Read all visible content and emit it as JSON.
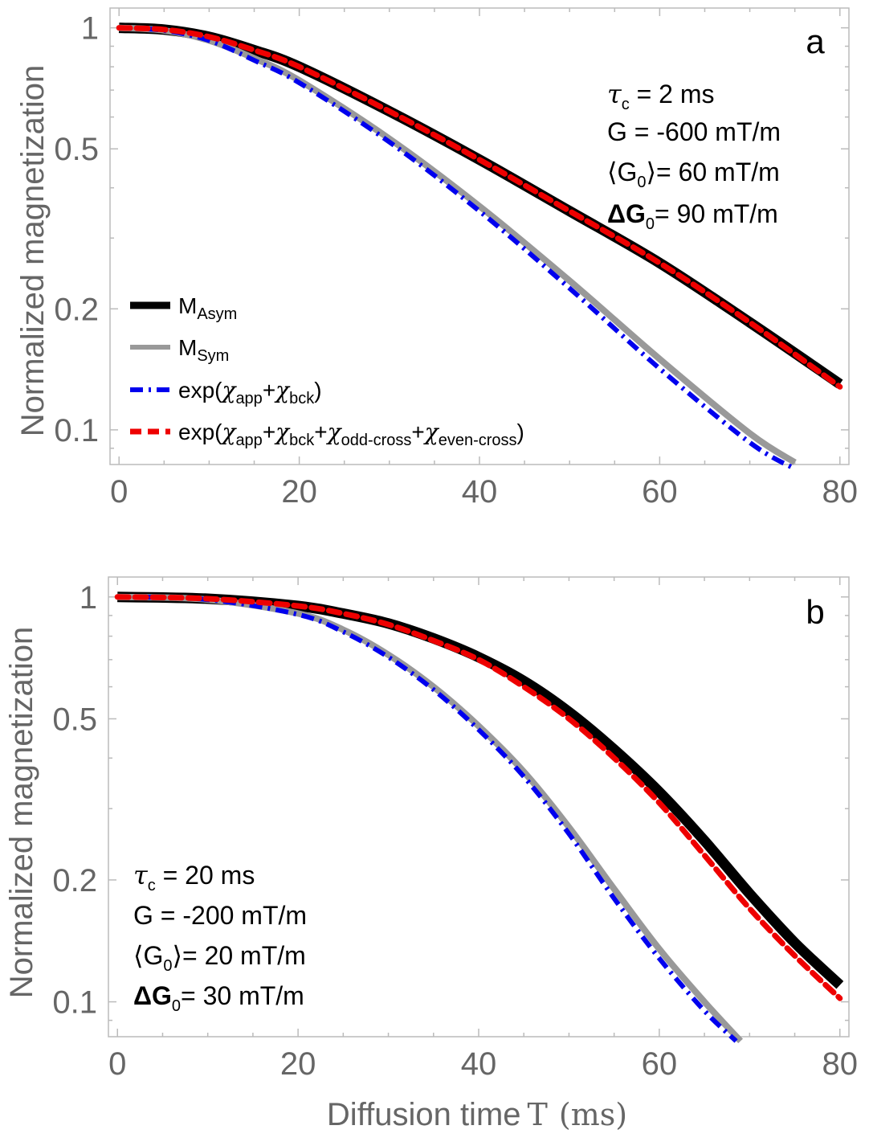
{
  "figure": {
    "xlabel_main": "Diffusion time",
    "xlabel_symbol": "T",
    "xlabel_unit": "(ms)",
    "ylabel": "Normalized magnetization"
  },
  "legend": {
    "items": [
      {
        "base": "M",
        "sub": "Asym",
        "color": "#000000",
        "style": "solid-thick"
      },
      {
        "base": "M",
        "sub": "Sym",
        "color": "#999999",
        "style": "solid"
      },
      {
        "base": "exp(",
        "parts": [
          [
            "χ",
            "app"
          ],
          [
            "χ",
            "bck"
          ]
        ],
        "color": "#0000ee",
        "style": "dashdot"
      },
      {
        "base": "exp(",
        "parts": [
          [
            "χ",
            "app"
          ],
          [
            "χ",
            "bck"
          ],
          [
            "χ",
            "odd-cross"
          ],
          [
            "χ",
            "even-cross"
          ]
        ],
        "color": "#ee0000",
        "style": "dashed"
      }
    ]
  },
  "colors": {
    "asym": "#000000",
    "sym": "#999999",
    "exp2": "#0000ee",
    "exp4": "#ee0000",
    "frame": "#bbbbbb",
    "ticklabel": "#666666"
  },
  "chart_data": [
    {
      "type": "line",
      "panel": "a",
      "yscale": "log",
      "xlim": [
        -1,
        81
      ],
      "ylim": [
        0.082,
        1.12
      ],
      "xticks": [
        0,
        20,
        40,
        60,
        80
      ],
      "yticks": [
        0.1,
        0.2,
        0.5,
        1
      ],
      "ytick_labels": [
        "0.1",
        "0.2",
        "0.5",
        "1"
      ],
      "annotation": {
        "tau": {
          "sym": "τ",
          "sub": "c",
          "rest": " = 2 ms"
        },
        "G": "G = -600 mT/m",
        "G0": {
          "pre": "⟨G",
          "sub": "0",
          "rest": "⟩= 60 mT/m"
        },
        "dG0": {
          "pre": "ΔG",
          "sub": "0",
          "rest": "= 90 mT/m"
        }
      },
      "series": [
        {
          "name": "M_Asym",
          "x": [
            0,
            5,
            10,
            15,
            20,
            30,
            40,
            50,
            60,
            70,
            80
          ],
          "y": [
            1.0,
            0.99,
            0.95,
            0.88,
            0.8,
            0.62,
            0.47,
            0.35,
            0.26,
            0.185,
            0.13
          ]
        },
        {
          "name": "M_Sym",
          "x": [
            0,
            5,
            10,
            15,
            20,
            30,
            40,
            50,
            60,
            70,
            75
          ],
          "y": [
            1.0,
            0.985,
            0.93,
            0.84,
            0.74,
            0.53,
            0.36,
            0.235,
            0.15,
            0.098,
            0.083
          ]
        },
        {
          "name": "exp(χapp+χbck)",
          "x": [
            0,
            5,
            10,
            15,
            20,
            30,
            40,
            50,
            60,
            70,
            75
          ],
          "y": [
            1.0,
            0.985,
            0.93,
            0.83,
            0.73,
            0.52,
            0.35,
            0.225,
            0.142,
            0.093,
            0.08
          ]
        },
        {
          "name": "exp(χapp+χbck+χodd-cross+χeven-cross)",
          "x": [
            0,
            5,
            10,
            15,
            20,
            30,
            40,
            50,
            60,
            70,
            80
          ],
          "y": [
            1.0,
            0.99,
            0.95,
            0.88,
            0.8,
            0.62,
            0.47,
            0.35,
            0.26,
            0.185,
            0.128
          ]
        }
      ]
    },
    {
      "type": "line",
      "panel": "b",
      "yscale": "log",
      "xlim": [
        -1,
        81
      ],
      "ylim": [
        0.082,
        1.12
      ],
      "xticks": [
        0,
        20,
        40,
        60,
        80
      ],
      "yticks": [
        0.1,
        0.2,
        0.5,
        1
      ],
      "ytick_labels": [
        "0.1",
        "0.2",
        "0.5",
        "1"
      ],
      "annotation": {
        "tau": {
          "sym": "τ",
          "sub": "c",
          "rest": " = 20 ms"
        },
        "G": "G = -200 mT/m",
        "G0": {
          "pre": "⟨G",
          "sub": "0",
          "rest": "⟩= 20 mT/m"
        },
        "dG0": {
          "pre": "ΔG",
          "sub": "0",
          "rest": "= 30 mT/m"
        }
      },
      "series": [
        {
          "name": "M_Asym",
          "x": [
            0,
            10,
            20,
            25,
            30,
            35,
            40,
            45,
            50,
            55,
            60,
            65,
            70,
            75,
            80
          ],
          "y": [
            1.0,
            0.99,
            0.95,
            0.91,
            0.86,
            0.79,
            0.71,
            0.62,
            0.52,
            0.42,
            0.33,
            0.25,
            0.185,
            0.14,
            0.11
          ]
        },
        {
          "name": "M_Sym",
          "x": [
            0,
            10,
            20,
            25,
            30,
            35,
            40,
            45,
            50,
            55,
            60,
            65,
            69
          ],
          "y": [
            1.0,
            0.985,
            0.91,
            0.83,
            0.72,
            0.6,
            0.48,
            0.37,
            0.27,
            0.19,
            0.135,
            0.1,
            0.08
          ]
        },
        {
          "name": "exp(χapp+χbck)",
          "x": [
            0,
            10,
            20,
            25,
            30,
            35,
            40,
            45,
            50,
            55,
            60,
            65,
            68.5
          ],
          "y": [
            1.0,
            0.985,
            0.905,
            0.82,
            0.71,
            0.59,
            0.47,
            0.36,
            0.26,
            0.18,
            0.128,
            0.095,
            0.08
          ]
        },
        {
          "name": "exp(χapp+χbck+χodd-cross+χeven-cross)",
          "x": [
            0,
            10,
            20,
            25,
            30,
            35,
            40,
            45,
            50,
            55,
            60,
            65,
            70,
            75,
            80
          ],
          "y": [
            1.0,
            0.99,
            0.95,
            0.91,
            0.855,
            0.78,
            0.7,
            0.6,
            0.5,
            0.4,
            0.31,
            0.23,
            0.17,
            0.13,
            0.102
          ]
        }
      ]
    }
  ]
}
